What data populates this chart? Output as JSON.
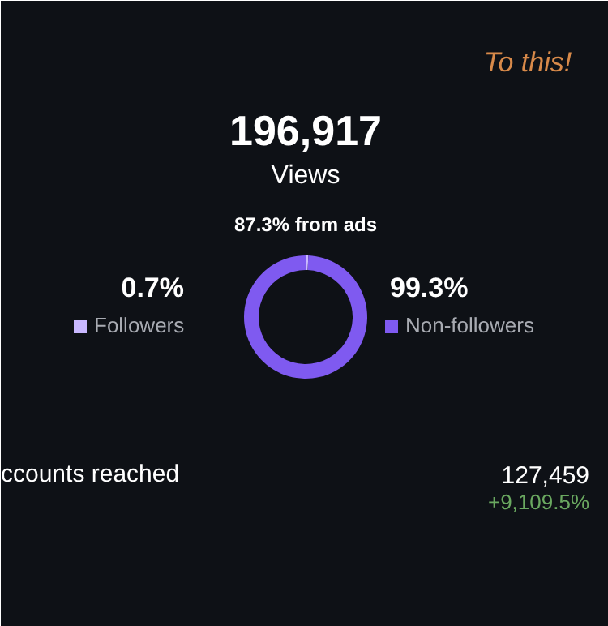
{
  "chart_data": {
    "type": "donut",
    "title": "196,917",
    "subtitle": "Views",
    "categories": [
      "Followers",
      "Non-followers"
    ],
    "values": [
      0.7,
      99.3
    ],
    "colors": [
      "#c9b8ff",
      "#7f5af0"
    ],
    "value_labels": [
      "0.7%",
      "99.3%"
    ],
    "legend": "center",
    "annotations": [
      "87.3% from ads",
      "ccounts reached",
      "127,459",
      "+9,109.5%",
      "To this!"
    ]
  }
}
